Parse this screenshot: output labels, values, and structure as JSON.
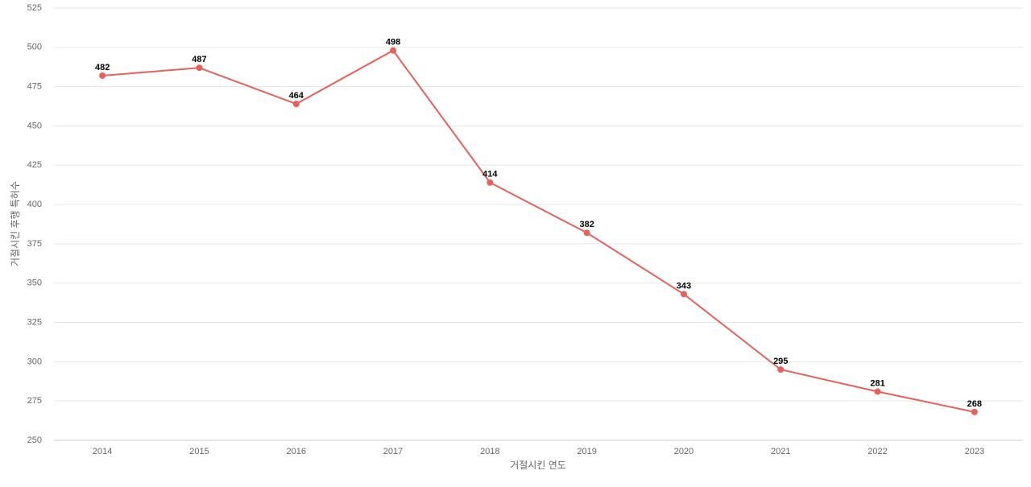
{
  "chart_data": {
    "type": "line",
    "x_label": "거절시킨 연도",
    "y_label": "거절시킨 후행 특허수",
    "categories": [
      "2014",
      "2015",
      "2016",
      "2017",
      "2018",
      "2019",
      "2020",
      "2021",
      "2022",
      "2023"
    ],
    "series": [
      {
        "color": "#e8605a",
        "values": [
          482,
          487,
          464,
          498,
          414,
          382,
          343,
          295,
          281,
          268
        ]
      }
    ],
    "ylim": [
      250,
      525
    ],
    "yticks": [
      250,
      275,
      300,
      325,
      350,
      375,
      400,
      425,
      450,
      475,
      500,
      525
    ],
    "grid": true
  }
}
